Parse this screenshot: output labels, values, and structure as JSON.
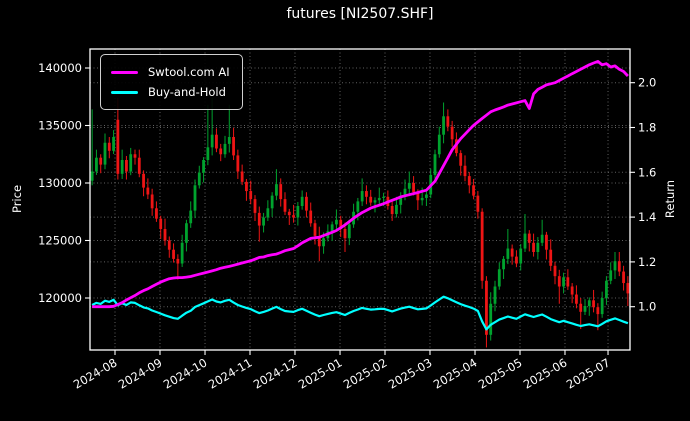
{
  "title": "futures [NI2507.SHF]",
  "legend": {
    "items": [
      {
        "label": "Swtool.com AI",
        "color": "#ff00ff"
      },
      {
        "label": "Buy-and-Hold",
        "color": "#00ffff"
      }
    ]
  },
  "axes": {
    "left": {
      "label": "Price",
      "ticks": [
        140000,
        135000,
        130000,
        125000,
        120000
      ]
    },
    "right": {
      "label": "Return",
      "ticks": [
        "2.0",
        "1.8",
        "1.6",
        "1.4",
        "1.2",
        "1.0"
      ]
    },
    "x": {
      "ticks": [
        {
          "label": "2024-08",
          "pos": 0.0463
        },
        {
          "label": "2024-09",
          "pos": 0.1296
        },
        {
          "label": "2024-10",
          "pos": 0.213
        },
        {
          "label": "2024-11",
          "pos": 0.2963
        },
        {
          "label": "2024-12",
          "pos": 0.3796
        },
        {
          "label": "2025-01",
          "pos": 0.463
        },
        {
          "label": "2025-02",
          "pos": 0.5463
        },
        {
          "label": "2025-03",
          "pos": 0.6296
        },
        {
          "label": "2025-04",
          "pos": 0.713
        },
        {
          "label": "2025-05",
          "pos": 0.7963
        },
        {
          "label": "2025-06",
          "pos": 0.8796
        },
        {
          "label": "2025-07",
          "pos": 0.9593
        }
      ]
    }
  },
  "chart_data": {
    "type": "candlestick_with_lines",
    "title": "futures [NI2507.SHF]",
    "xlabel": "",
    "ylabel_left": "Price",
    "ylabel_right": "Return",
    "grid": true,
    "legend_position": "upper left",
    "price_axis_range": [
      115478,
      141652
    ],
    "return_axis_range": [
      0.8067,
      2.1504
    ],
    "buy_and_hold_basis_price": 130000,
    "sampling_note": "values estimated from plot pixels; each bar spans ~2 trading days, 2024-07 to 2025-07",
    "colors": {
      "background": "#000000",
      "text": "#ffffff",
      "spine": "#ffffff",
      "grid": "#ffffff",
      "candle_up": "#00a32e",
      "candle_down": "#ee1515",
      "ai_line": "#ff00ff",
      "bh_line": "#00ffff"
    },
    "candles_ohlc": [
      [
        130200,
        136400,
        129800,
        131000
      ],
      [
        131000,
        132900,
        130700,
        132200
      ],
      [
        132200,
        132500,
        130850,
        131600
      ],
      [
        131600,
        134300,
        131200,
        133500
      ],
      [
        133500,
        134000,
        132150,
        132800
      ],
      [
        132800,
        134600,
        132520,
        134000
      ],
      [
        135500,
        137400,
        130300,
        130800
      ],
      [
        130800,
        132900,
        130350,
        132000
      ],
      [
        132000,
        132350,
        130300,
        131000
      ],
      [
        131000,
        133050,
        130680,
        132500
      ],
      [
        132500,
        132900,
        131600,
        132200
      ],
      [
        132200,
        132900,
        130500,
        130800
      ],
      [
        130800,
        131100,
        128850,
        129600
      ],
      [
        129600,
        130400,
        128600,
        129000
      ],
      [
        129000,
        129500,
        127150,
        127800
      ],
      [
        127800,
        128400,
        126620,
        126900
      ],
      [
        126900,
        127150,
        125150,
        126000
      ],
      [
        126000,
        126900,
        124550,
        125000
      ],
      [
        125000,
        125350,
        123500,
        124200
      ],
      [
        124200,
        124750,
        123080,
        123400
      ],
      [
        123400,
        123800,
        121600,
        123000
      ],
      [
        123000,
        125500,
        122700,
        124800
      ],
      [
        124800,
        126800,
        124050,
        126500
      ],
      [
        126500,
        128400,
        126100,
        127600
      ],
      [
        127600,
        130300,
        126950,
        129800
      ],
      [
        129800,
        131500,
        129520,
        130900
      ],
      [
        130900,
        132250,
        130050,
        132000
      ],
      [
        132000,
        136800,
        131550,
        133100
      ],
      [
        133100,
        137400,
        132400,
        134200
      ],
      [
        134200,
        134750,
        132680,
        133000
      ],
      [
        133000,
        133400,
        131900,
        132500
      ],
      [
        132500,
        134100,
        132200,
        133400
      ],
      [
        133400,
        136800,
        132650,
        134000
      ],
      [
        134000,
        134800,
        132000,
        132400
      ],
      [
        132400,
        132900,
        130350,
        131000
      ],
      [
        131000,
        131600,
        129820,
        130100
      ],
      [
        130100,
        130350,
        128450,
        129300
      ],
      [
        129300,
        130200,
        128150,
        128600
      ],
      [
        128600,
        128950,
        126700,
        127400
      ],
      [
        127400,
        127950,
        124900,
        126300
      ],
      [
        126300,
        127400,
        125700,
        127000
      ],
      [
        127000,
        128500,
        126700,
        127800
      ],
      [
        127800,
        129200,
        127050,
        128900
      ],
      [
        128900,
        131200,
        128500,
        129900
      ],
      [
        129900,
        130400,
        127950,
        128600
      ],
      [
        128600,
        129200,
        127220,
        127500
      ],
      [
        127500,
        127750,
        126350,
        127200
      ],
      [
        127200,
        128100,
        126550,
        127000
      ],
      [
        127000,
        128350,
        126300,
        128000
      ],
      [
        128000,
        129350,
        127680,
        128800
      ],
      [
        128800,
        129200,
        127000,
        127600
      ],
      [
        127600,
        128300,
        126200,
        126500
      ],
      [
        126500,
        126800,
        124650,
        125400
      ],
      [
        125400,
        126200,
        123200,
        124500
      ],
      [
        124500,
        125700,
        123850,
        125200
      ],
      [
        125200,
        126400,
        124920,
        125800
      ],
      [
        125800,
        126650,
        124950,
        126400
      ],
      [
        126400,
        127700,
        125950,
        126800
      ],
      [
        126800,
        127150,
        125300,
        126000
      ],
      [
        126000,
        126550,
        124000,
        125200
      ],
      [
        125200,
        126800,
        124600,
        126400
      ],
      [
        126400,
        128200,
        126100,
        127500
      ],
      [
        127500,
        128700,
        126750,
        128400
      ],
      [
        128400,
        130400,
        128000,
        129300
      ],
      [
        129300,
        129800,
        128150,
        128800
      ],
      [
        128800,
        129400,
        128020,
        128300
      ],
      [
        128300,
        128750,
        127450,
        128500
      ],
      [
        128500,
        129600,
        128050,
        128700
      ],
      [
        128700,
        129150,
        128000,
        128800
      ],
      [
        128800,
        129350,
        127680,
        128000
      ],
      [
        128000,
        128400,
        126700,
        127300
      ],
      [
        127300,
        128800,
        127000,
        128100
      ],
      [
        128100,
        129200,
        127350,
        128900
      ],
      [
        128900,
        130300,
        128500,
        129500
      ],
      [
        129500,
        131000,
        128850,
        130000
      ],
      [
        130000,
        130600,
        128920,
        129200
      ],
      [
        129200,
        129450,
        127650,
        128500
      ],
      [
        128500,
        129600,
        128050,
        128700
      ],
      [
        128700,
        129350,
        128000,
        129000
      ],
      [
        129000,
        131250,
        128680,
        130700
      ],
      [
        130700,
        132900,
        130100,
        132500
      ],
      [
        132500,
        134900,
        132200,
        134200
      ],
      [
        134200,
        137000,
        133450,
        135800
      ],
      [
        135800,
        136400,
        134500,
        134900
      ],
      [
        134900,
        135400,
        133150,
        133800
      ],
      [
        133800,
        134400,
        132320,
        132600
      ],
      [
        132600,
        132850,
        130650,
        131500
      ],
      [
        131500,
        132400,
        130150,
        130600
      ],
      [
        130600,
        130950,
        129100,
        129800
      ],
      [
        129800,
        130350,
        128580,
        128900
      ],
      [
        128900,
        129300,
        126900,
        127500
      ],
      [
        127500,
        127800,
        120800,
        121500
      ],
      [
        121500,
        121900,
        115700,
        116800
      ],
      [
        116800,
        120500,
        116300,
        119500
      ],
      [
        119500,
        121500,
        118850,
        121000
      ],
      [
        121000,
        123100,
        120720,
        122500
      ],
      [
        122500,
        123650,
        121650,
        123400
      ],
      [
        123400,
        126000,
        122950,
        124300
      ],
      [
        124300,
        124650,
        122900,
        123600
      ],
      [
        123600,
        124150,
        122680,
        123000
      ],
      [
        123000,
        124700,
        122400,
        124300
      ],
      [
        124300,
        127300,
        124000,
        125600
      ],
      [
        125600,
        125900,
        124050,
        124800
      ],
      [
        124800,
        125600,
        123600,
        124000
      ],
      [
        124000,
        125300,
        123350,
        124800
      ],
      [
        124800,
        126800,
        124520,
        125500
      ],
      [
        125500,
        125750,
        123350,
        124200
      ],
      [
        124200,
        125100,
        122350,
        122800
      ],
      [
        122800,
        123150,
        121200,
        121900
      ],
      [
        121900,
        122450,
        119500,
        121000
      ],
      [
        121000,
        122200,
        120400,
        121800
      ],
      [
        121800,
        122500,
        120700,
        121000
      ],
      [
        121000,
        121300,
        119550,
        120300
      ],
      [
        120300,
        121100,
        119100,
        119500
      ],
      [
        119500,
        120000,
        117300,
        118800
      ],
      [
        118800,
        119900,
        118520,
        119300
      ],
      [
        119300,
        120050,
        118450,
        119800
      ],
      [
        119800,
        120700,
        118750,
        119200
      ],
      [
        119200,
        119550,
        117200,
        118600
      ],
      [
        118600,
        120550,
        118280,
        120000
      ],
      [
        120000,
        121900,
        119400,
        121500
      ],
      [
        121500,
        123100,
        121200,
        122400
      ],
      [
        122400,
        124000,
        121650,
        123200
      ],
      [
        123200,
        124000,
        121900,
        122300
      ],
      [
        122300,
        122800,
        120650,
        121300
      ],
      [
        121300,
        121900,
        119300,
        120400
      ]
    ],
    "series": [
      {
        "name": "Swtool.com AI",
        "axis": "return",
        "color": "#ff00ff",
        "values": [
          1.0,
          1.0,
          1.0,
          1.0,
          1.0,
          1.002,
          1.01,
          1.018,
          1.03,
          1.04,
          1.05,
          1.062,
          1.072,
          1.08,
          1.09,
          1.1,
          1.11,
          1.118,
          1.125,
          1.128,
          1.13,
          1.13,
          1.132,
          1.135,
          1.14,
          1.145,
          1.15,
          1.155,
          1.16,
          1.165,
          1.172,
          1.176,
          1.18,
          1.185,
          1.19,
          1.195,
          1.2,
          1.205,
          1.212,
          1.22,
          1.222,
          1.228,
          1.232,
          1.235,
          1.242,
          1.25,
          1.255,
          1.26,
          1.272,
          1.285,
          1.295,
          1.305,
          1.308,
          1.31,
          1.318,
          1.325,
          1.332,
          1.34,
          1.352,
          1.365,
          1.38,
          1.395,
          1.408,
          1.42,
          1.43,
          1.44,
          1.447,
          1.453,
          1.46,
          1.468,
          1.475,
          1.482,
          1.49,
          1.495,
          1.5,
          1.505,
          1.51,
          1.515,
          1.52,
          1.54,
          1.56,
          1.595,
          1.63,
          1.665,
          1.7,
          1.725,
          1.75,
          1.77,
          1.79,
          1.81,
          1.825,
          1.84,
          1.855,
          1.87,
          1.878,
          1.885,
          1.892,
          1.9,
          1.905,
          1.91,
          1.915,
          1.92,
          1.885,
          1.95,
          1.97,
          1.98,
          1.99,
          1.995,
          2.0,
          2.01,
          2.02,
          2.03,
          2.04,
          2.05,
          2.06,
          2.07,
          2.08,
          2.088,
          2.095,
          2.08,
          2.085,
          2.07,
          2.075,
          2.06,
          2.05,
          2.03
        ]
      },
      {
        "name": "Buy-and-Hold",
        "axis": "return",
        "color": "#00ffff",
        "derived": "candle close / 130000"
      }
    ]
  }
}
